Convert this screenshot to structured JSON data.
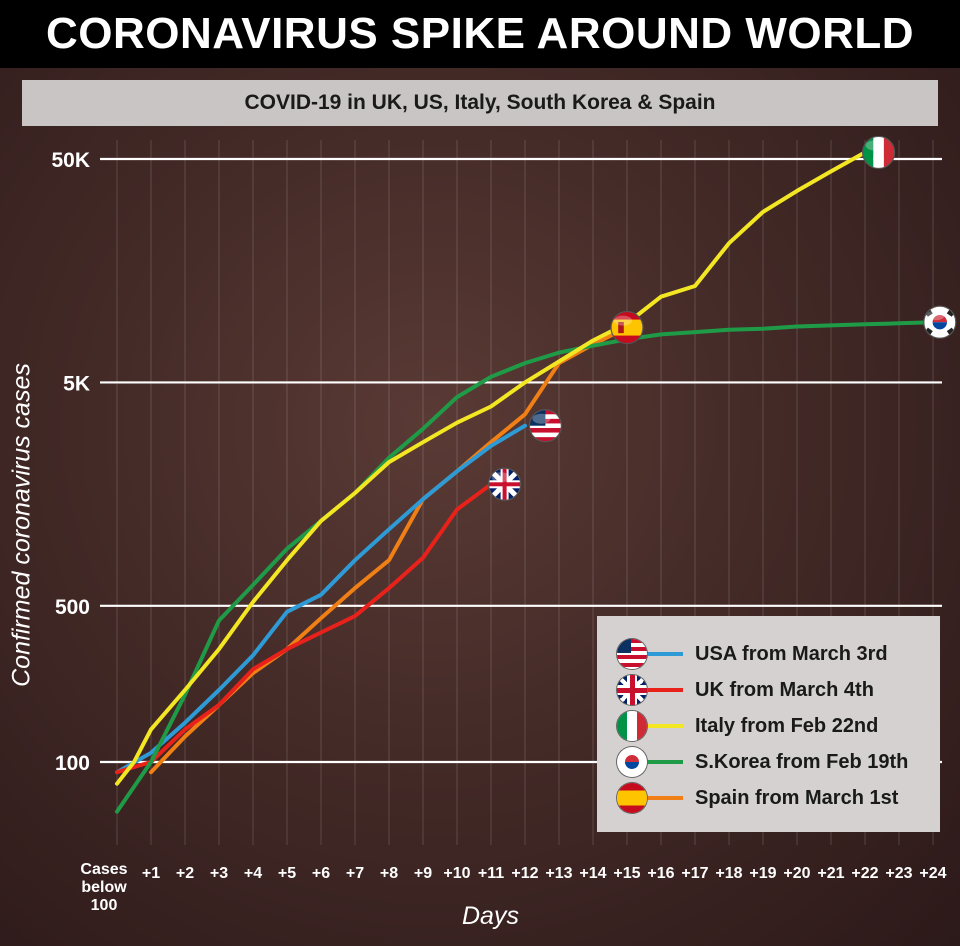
{
  "title": "CORONAVIRUS SPIKE AROUND WORLD",
  "subtitle": "COVID-19 in UK, US, Italy, South Korea & Spain",
  "chart_data": {
    "type": "line",
    "yscale": "log",
    "ylim": [
      50,
      80000
    ],
    "xlim": [
      -0.7,
      25
    ],
    "grid": true,
    "legend_position": "bottom-right",
    "xlabel": "Days",
    "ylabel": "Confirmed coronavirus cases",
    "y_ticks": [
      {
        "value": 100,
        "label": "100"
      },
      {
        "value": 500,
        "label": "500"
      },
      {
        "value": 5000,
        "label": "5K"
      },
      {
        "value": 50000,
        "label": "50K"
      }
    ],
    "x_ticks": [
      "+1",
      "+2",
      "+3",
      "+4",
      "+5",
      "+6",
      "+7",
      "+8",
      "+9",
      "+10",
      "+11",
      "+12",
      "+13",
      "+14",
      "+15",
      "+16",
      "+17",
      "+18",
      "+19",
      "+20",
      "+21",
      "+22",
      "+23",
      "+24"
    ],
    "x_first_tick_lines": [
      "Cases",
      "below",
      "100"
    ],
    "series": [
      {
        "name": "USA from March 3rd",
        "color": "#2e9bd6",
        "flag": "us-flag",
        "x": [
          0,
          1,
          2,
          3,
          4,
          5,
          6,
          7,
          8,
          9,
          10,
          11,
          12
        ],
        "y": [
          90,
          110,
          150,
          210,
          300,
          470,
          560,
          800,
          1100,
          1500,
          2000,
          2600,
          3200
        ]
      },
      {
        "name": "UK from March 4th",
        "color": "#e8221b",
        "flag": "uk-flag",
        "x": [
          0,
          1,
          2,
          3,
          4,
          5,
          6,
          7,
          8,
          9,
          10,
          11
        ],
        "y": [
          90,
          100,
          140,
          180,
          260,
          320,
          380,
          450,
          600,
          820,
          1350,
          1750
        ]
      },
      {
        "name": "Italy from Feb 22nd",
        "color": "#f3e623",
        "flag": "italy-flag",
        "x": [
          0,
          0.5,
          1,
          2,
          3,
          4,
          5,
          6,
          7,
          8,
          9,
          10,
          11,
          12,
          13,
          14,
          15,
          16,
          17,
          18,
          19,
          20,
          21,
          22
        ],
        "y": [
          80,
          100,
          140,
          210,
          320,
          520,
          800,
          1200,
          1600,
          2200,
          2700,
          3300,
          3900,
          5000,
          6200,
          7700,
          9200,
          12100,
          13500,
          21000,
          29000,
          36000,
          44000,
          53500
        ]
      },
      {
        "name": "S.Korea from Feb 19th",
        "color": "#1f9b47",
        "flag": "south-korea-flag",
        "x": [
          0,
          1,
          2,
          3,
          4,
          5,
          6,
          7,
          8,
          9,
          10,
          11,
          12,
          13,
          14,
          15,
          16,
          17,
          18,
          19,
          20,
          21,
          22,
          23,
          24
        ],
        "y": [
          60,
          100,
          200,
          430,
          620,
          900,
          1200,
          1600,
          2300,
          3100,
          4300,
          5300,
          6100,
          6800,
          7300,
          7800,
          8200,
          8400,
          8600,
          8700,
          8900,
          9000,
          9100,
          9200,
          9300
        ]
      },
      {
        "name": "Spain from March 1st",
        "color": "#f07f15",
        "flag": "spain-flag",
        "x": [
          1,
          2,
          3,
          4,
          5,
          6,
          7,
          8,
          9,
          10,
          11,
          12,
          13,
          14,
          15
        ],
        "y": [
          90,
          130,
          180,
          250,
          320,
          440,
          600,
          800,
          1500,
          2000,
          2700,
          3600,
          6100,
          7400,
          8800
        ]
      }
    ]
  }
}
